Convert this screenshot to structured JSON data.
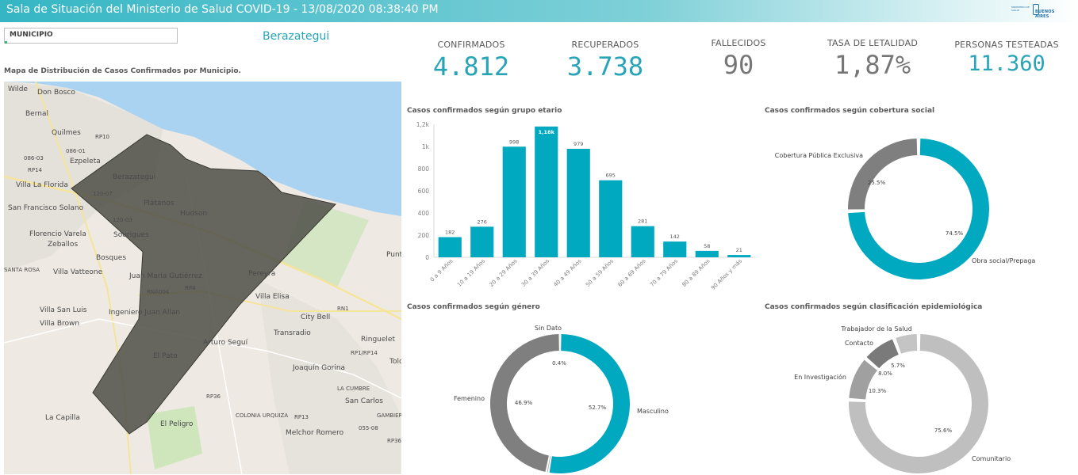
{
  "header": {
    "title": "Sala de Situación del Ministerio de Salud COVID-19 - 13/08/2020 08:38:40 PM",
    "logo_small": "MINISTERIO DE SALUD",
    "logo_main": "BUENOS AIRES"
  },
  "filter": {
    "label": "MUNICIPIO",
    "selected": "Berazategui"
  },
  "map": {
    "title": "Mapa de Distribución de Casos Confirmados por Municipio.",
    "places": [
      "Wilde",
      "Don Bosco",
      "Bernal",
      "Quilmes",
      "RP10",
      "086-01",
      "086-03",
      "Ezpeleta",
      "RP14",
      "Berazategui",
      "Villa La Florida",
      "120-07",
      "Plátanos",
      "Hudson",
      "San Francisco Solano",
      "120-03",
      "Florencio Varela",
      "Sourigues",
      "Zeballos",
      "Bosques",
      "Punt",
      "SANTA ROSA",
      "Villa Vatteone",
      "Juan María Gutiérrez",
      "Pereyra",
      "RNA004",
      "RP4",
      "Villa Elisa",
      "RN1",
      "Villa San Luis",
      "Ingeniero Juan Allan",
      "City Bell",
      "Villa Brown",
      "Transradio",
      "Ringuelet",
      "Arturo Seguí",
      "RP1/RP14",
      "El Pato",
      "Joaquín Gorina",
      "Tolo",
      "LA CUMBRE",
      "RP36",
      "San Carlos",
      "La Capilla",
      "COLONIA URQUIZA",
      "RP13",
      "GAMBIER",
      "El Peligro",
      "Melchor Romero",
      "055-08",
      "RP36"
    ]
  },
  "kpis": [
    {
      "label": "CONFIRMADOS",
      "value": "4.812",
      "color": "#27a4b7"
    },
    {
      "label": "RECUPERADOS",
      "value": "3.738",
      "color": "#27a4b7"
    },
    {
      "label": "FALLECIDOS",
      "value": "90",
      "color": "#767676"
    },
    {
      "label": "TASA DE LETALIDAD",
      "value": "1,87%",
      "color": "#767676"
    },
    {
      "label": "PERSONAS TESTEADAS",
      "value": "11.360",
      "color": "#27a4b7"
    }
  ],
  "chart_data": [
    {
      "type": "bar",
      "title": "Casos confirmados según grupo etario",
      "categories": [
        "0 a 9 Años",
        "10 a 19 Años",
        "20 a 29 Años",
        "30 a 39 Años",
        "40 a 49 Años",
        "50 a 59 Años",
        "60 a 69 Años",
        "70 a 79 Años",
        "80 a 89 Años",
        "90 Años y más"
      ],
      "values": [
        182,
        276,
        998,
        1180,
        979,
        695,
        281,
        142,
        58,
        21
      ],
      "data_labels": [
        "182",
        "276",
        "998",
        "1,18k",
        "979",
        "695",
        "281",
        "142",
        "58",
        "21"
      ],
      "yticks": [
        "0",
        "200",
        "400",
        "600",
        "800",
        "1k",
        "1,2k"
      ],
      "ylim": [
        0,
        1200
      ],
      "color": "#00a9c0"
    },
    {
      "type": "pie",
      "title": "Casos confirmados según cobertura social",
      "labels": [
        "Obra social/Prepaga",
        "Cobertura Pública Exclusiva"
      ],
      "values": [
        74.5,
        25.5
      ],
      "value_labels": [
        "74.5%",
        "25.5%"
      ],
      "colors": [
        "#00a9c0",
        "#7f7f7f"
      ]
    },
    {
      "type": "pie",
      "title": "Casos confirmados según género",
      "labels": [
        "Masculino",
        "Sin Dato",
        "Femenino"
      ],
      "values": [
        52.7,
        0.4,
        46.9
      ],
      "value_labels": [
        "52.7%",
        "0.4%",
        "46.9%"
      ],
      "colors": [
        "#00a9c0",
        "#a6a6a6",
        "#7f7f7f"
      ]
    },
    {
      "type": "pie",
      "title": "Casos confirmados según clasificación epidemiológica",
      "labels": [
        "Comunitario",
        "En Investigación",
        "Contacto",
        "Trabajador de la Salud"
      ],
      "values": [
        75.6,
        10.3,
        8.0,
        5.7
      ],
      "value_labels": [
        "75.6%",
        "10.3%",
        "8.0%",
        "5.7%"
      ],
      "colors": [
        "#bfbfbf",
        "#a0a0a0",
        "#7a7a7a",
        "#c4c4c4"
      ]
    }
  ]
}
